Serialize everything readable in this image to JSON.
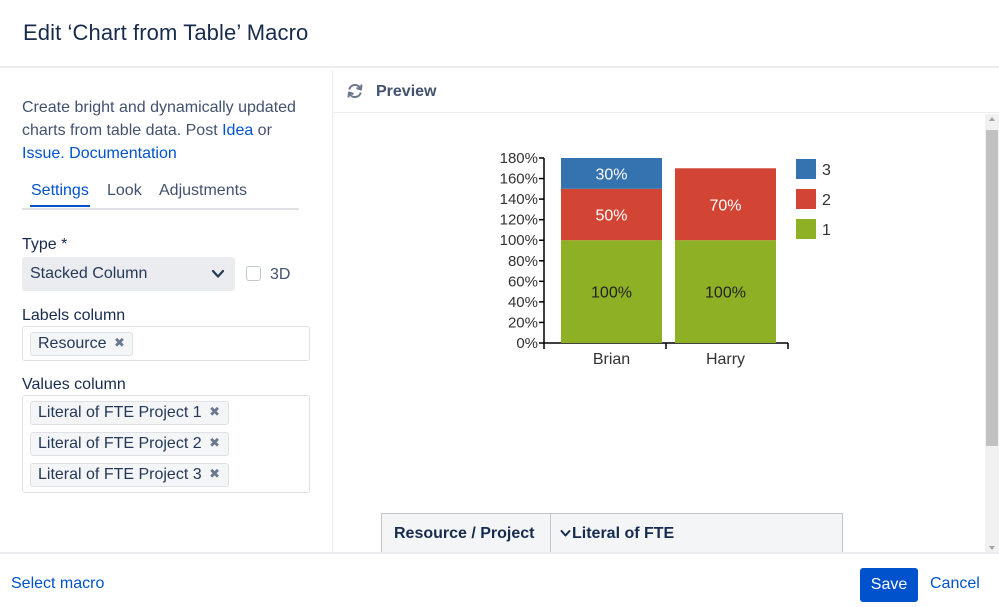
{
  "dialog": {
    "title": "Edit ‘Chart from Table’ Macro"
  },
  "sidebar": {
    "description": {
      "text": "Create bright and dynamically updated charts from table data. Post ",
      "idea_link": "Idea",
      "or_text": " or ",
      "issue_link": "Issue.",
      "doc_link": "Documentation"
    },
    "tabs": [
      {
        "label": "Settings",
        "active": true
      },
      {
        "label": "Look",
        "active": false
      },
      {
        "label": "Adjustments",
        "active": false
      }
    ],
    "type_field": {
      "label": "Type *",
      "value": "Stacked Column",
      "option_3d_label": "3D",
      "option_3d_checked": false
    },
    "labels_column": {
      "label": "Labels column",
      "chips": [
        "Resource"
      ]
    },
    "values_column": {
      "label": "Values column",
      "chips": [
        "Literal of FTE Project 1",
        "Literal of FTE Project 2",
        "Literal of FTE Project 3"
      ]
    }
  },
  "preview": {
    "title": "Preview",
    "table_headers": [
      "Resource / Project",
      "Literal of FTE"
    ]
  },
  "chart_data": {
    "type": "bar",
    "stacked": true,
    "categories": [
      "Brian",
      "Harry"
    ],
    "series": [
      {
        "name": "1",
        "values": [
          100,
          100
        ],
        "labels": [
          "100%",
          "100%"
        ],
        "color": "#8db025"
      },
      {
        "name": "2",
        "values": [
          50,
          70
        ],
        "labels": [
          "50%",
          "70%"
        ],
        "color": "#d24535"
      },
      {
        "name": "3",
        "values": [
          30,
          0
        ],
        "labels": [
          "30%",
          ""
        ],
        "color": "#3572b0"
      }
    ],
    "ylim": [
      0,
      180
    ],
    "yticks": [
      "0%",
      "20%",
      "40%",
      "60%",
      "80%",
      "100%",
      "120%",
      "140%",
      "160%",
      "180%"
    ],
    "legend": {
      "position": "right",
      "order": [
        "3",
        "2",
        "1"
      ]
    },
    "grid": false
  },
  "footer": {
    "select_macro": "Select macro",
    "save": "Save",
    "cancel": "Cancel"
  }
}
